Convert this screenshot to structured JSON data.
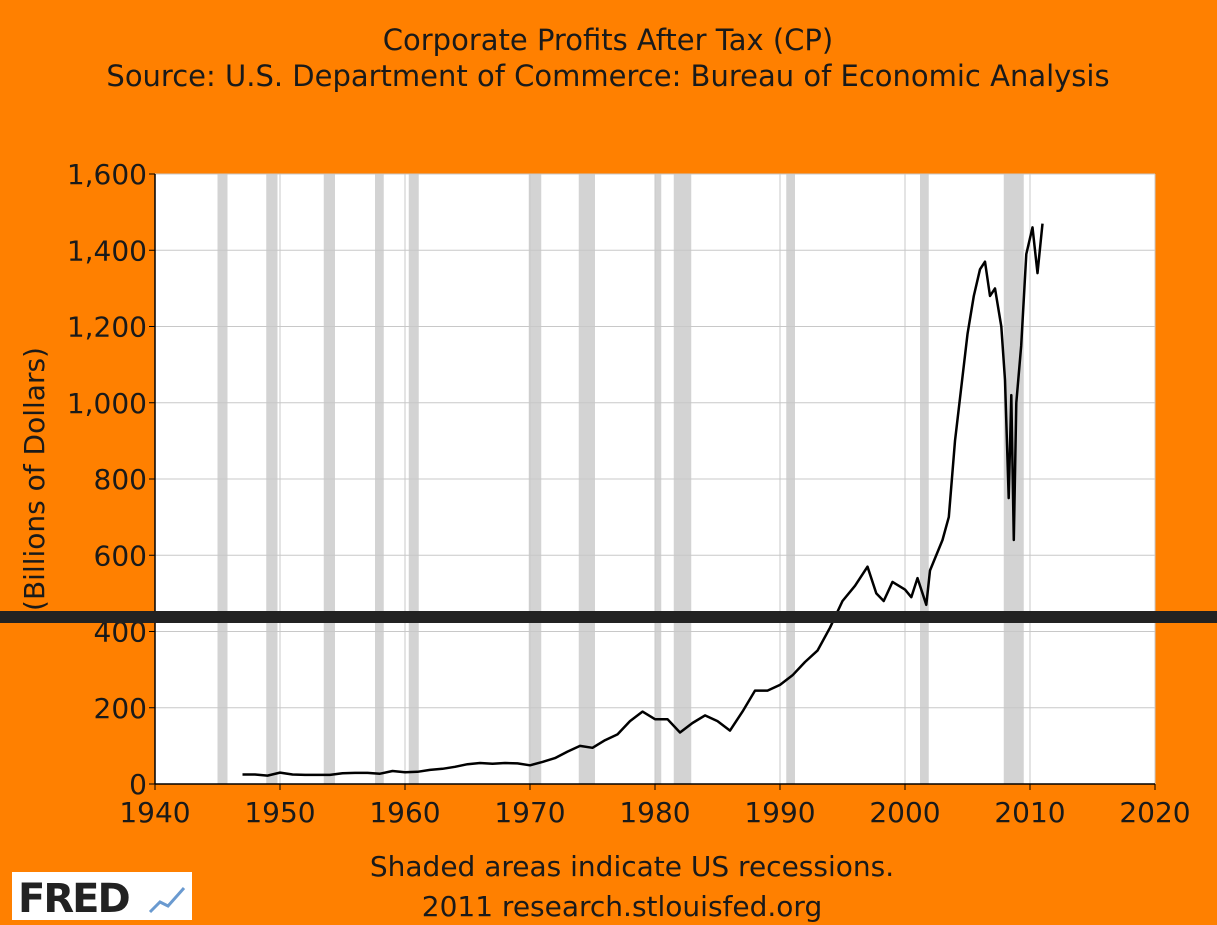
{
  "chart_data": {
    "type": "line",
    "title": "Corporate Profits After Tax (CP)",
    "subtitle": "Source: U.S. Department of Commerce: Bureau of Economic Analysis",
    "y_label": "(Billions of Dollars)",
    "footnote": "Shaded areas indicate US recessions.",
    "credit": "2011 research.stlouisfed.org",
    "logo": "FRED",
    "color": "#000000",
    "background": "#ff8000",
    "shade_color": "#d3d3d3",
    "grid": true,
    "xlim": [
      1940,
      2020
    ],
    "xticks": [
      1940,
      1950,
      1960,
      1970,
      1980,
      1990,
      2000,
      2010,
      2020
    ],
    "ylim": [
      0,
      1600
    ],
    "yticks": [
      0,
      200,
      400,
      600,
      800,
      {
        "value": 1000,
        "label": "1,000"
      },
      {
        "value": 1200,
        "label": "1,200"
      },
      {
        "value": 1400,
        "label": "1,400"
      },
      {
        "value": 1600,
        "label": "1,600"
      }
    ],
    "recessions": [
      [
        1945.0,
        1945.8
      ],
      [
        1948.9,
        1949.8
      ],
      [
        1953.5,
        1954.4
      ],
      [
        1957.6,
        1958.3
      ],
      [
        1960.3,
        1961.1
      ],
      [
        1969.9,
        1970.9
      ],
      [
        1973.9,
        1975.2
      ],
      [
        1980.0,
        1980.5
      ],
      [
        1981.5,
        1982.9
      ],
      [
        1990.5,
        1991.2
      ],
      [
        2001.2,
        2001.9
      ],
      [
        2007.9,
        2009.5
      ]
    ],
    "reference_line": 438,
    "reference_color": "#222222",
    "x": [
      1947,
      1948,
      1949,
      1950,
      1951,
      1952,
      1953,
      1954,
      1955,
      1956,
      1957,
      1958,
      1959,
      1960,
      1961,
      1962,
      1963,
      1964,
      1965,
      1966,
      1967,
      1968,
      1969,
      1970,
      1971,
      1972,
      1973,
      1974,
      1975,
      1976,
      1977,
      1978,
      1979,
      1980,
      1981,
      1982,
      1983,
      1984,
      1985,
      1986,
      1987,
      1988,
      1989,
      1990,
      1991,
      1992,
      1993,
      1994,
      1995,
      1996,
      1997,
      1997.7,
      1998.3,
      1999,
      2000,
      2000.5,
      2001,
      2001.7,
      2002,
      2003,
      2003.5,
      2004,
      2005,
      2005.5,
      2006,
      2006.4,
      2006.8,
      2007.2,
      2007.7,
      2008,
      2008.3,
      2008.5,
      2008.7,
      2008.9,
      2009.3,
      2009.7,
      2010.2,
      2010.6,
      2011
    ],
    "values": [
      25,
      25,
      22,
      30,
      25,
      24,
      24,
      24,
      28,
      29,
      29,
      27,
      34,
      31,
      32,
      37,
      40,
      45,
      52,
      55,
      53,
      55,
      54,
      49,
      58,
      68,
      85,
      100,
      95,
      115,
      130,
      165,
      190,
      170,
      170,
      135,
      160,
      180,
      165,
      140,
      190,
      245,
      245,
      260,
      285,
      320,
      350,
      410,
      480,
      520,
      570,
      500,
      480,
      530,
      510,
      490,
      540,
      470,
      560,
      640,
      700,
      900,
      1180,
      1280,
      1350,
      1370,
      1280,
      1300,
      1200,
      1060,
      750,
      1020,
      640,
      1000,
      1150,
      1390,
      1460,
      1340,
      1470
    ]
  }
}
